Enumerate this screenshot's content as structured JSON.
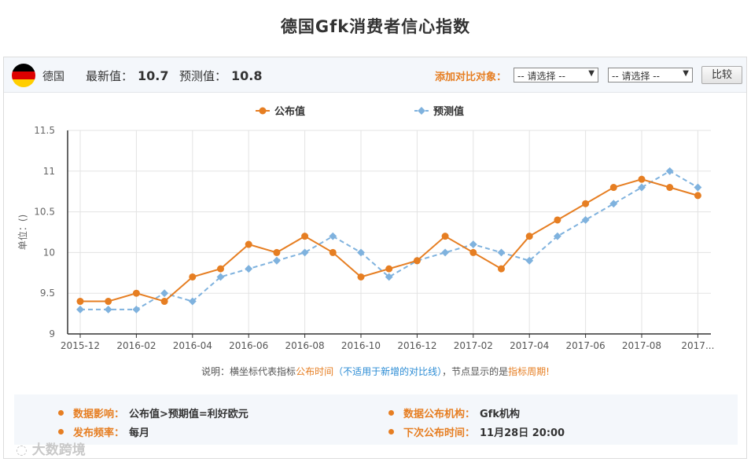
{
  "title": "德国Gfk消费者信心指数",
  "header": {
    "country": "德国",
    "latest_label": "最新值：",
    "latest_value": "10.7",
    "forecast_label": "预测值：",
    "forecast_value": "10.8",
    "compare_label": "添加对比对象：",
    "select1": "-- 请选择 --",
    "select2": "-- 请选择 --",
    "compare_button": "比较",
    "flag_colors": [
      "#000000",
      "#dd0000",
      "#ffce00"
    ]
  },
  "legend": {
    "published": "公布值",
    "forecast": "预测值"
  },
  "note": {
    "p1": "说明：横坐标代表指标",
    "p2": "公布时间",
    "p3": "（不适用于新增的对比线）",
    "p4": "，节点显示的是",
    "p5": "指标周期",
    "p6": "!"
  },
  "info": {
    "impact_label": "数据影响：",
    "impact_value": "公布值>预期值=利好欧元",
    "freq_label": "发布频率：",
    "freq_value": "每月",
    "org_label": "数据公布机构：",
    "org_value": "Gfk机构",
    "next_label": "下次公布时间：",
    "next_value": "11月28日 20:00"
  },
  "watermark": "大数跨境",
  "chart_data": {
    "type": "line",
    "ylabel": "单位：()",
    "ylim": [
      9,
      11.5
    ],
    "yticks": [
      "9",
      "9.5",
      "10",
      "10.5",
      "11",
      "11.5"
    ],
    "ytick_values": [
      9,
      9.5,
      10,
      10.5,
      11,
      11.5
    ],
    "xtick_labels": [
      "2015-12",
      "2016-02",
      "2016-04",
      "2016-06",
      "2016-08",
      "2016-10",
      "2016-12",
      "2017-02",
      "2017-04",
      "2017-06",
      "2017-08",
      "2017..."
    ],
    "x": [
      "2015-12",
      "2016-01",
      "2016-02",
      "2016-03",
      "2016-04",
      "2016-05",
      "2016-06",
      "2016-07",
      "2016-08",
      "2016-09",
      "2016-10",
      "2016-11",
      "2016-12",
      "2017-01",
      "2017-02",
      "2017-03",
      "2017-04",
      "2017-05",
      "2017-06",
      "2017-07",
      "2017-08",
      "2017-09",
      "2017-10"
    ],
    "series": [
      {
        "name": "公布值",
        "color": "#e67e22",
        "style": "solid",
        "values": [
          9.4,
          9.4,
          9.5,
          9.4,
          9.7,
          9.8,
          10.1,
          10.0,
          10.2,
          10.0,
          9.7,
          9.8,
          9.9,
          10.2,
          10.0,
          9.8,
          10.2,
          10.4,
          10.6,
          10.8,
          10.9,
          10.8,
          10.7
        ]
      },
      {
        "name": "预测值",
        "color": "#7fb2de",
        "style": "dashed",
        "values": [
          9.3,
          9.3,
          9.3,
          9.5,
          9.4,
          9.7,
          9.8,
          9.9,
          10.0,
          10.2,
          10.0,
          9.7,
          9.9,
          10.0,
          10.1,
          10.0,
          9.9,
          10.2,
          10.4,
          10.6,
          10.8,
          11.0,
          10.8
        ]
      }
    ],
    "grid": true,
    "legend_position": "top-center"
  }
}
